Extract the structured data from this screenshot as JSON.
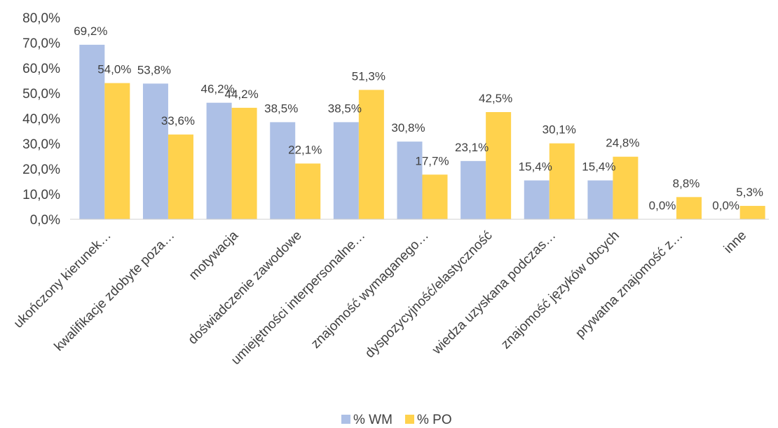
{
  "chart_data": {
    "type": "bar",
    "categories": [
      "ukończony kierunek…",
      "kwalifikacje zdobyte poza…",
      "motywacja",
      "doświadczenie zawodowe",
      "umiejętności interpersonalne…",
      "znajomość wymaganego…",
      "dyspozycyjność/elastyczność",
      "wiedza uzyskana podczas…",
      "znajomość języków obcych",
      "prywatna znajomość z…",
      "inne"
    ],
    "series": [
      {
        "name": "% WM",
        "color": "#adc0e6",
        "values": [
          69.2,
          53.8,
          46.2,
          38.5,
          38.5,
          30.8,
          23.1,
          15.4,
          15.4,
          0.0,
          0.0
        ],
        "labels": [
          "69,2%",
          "53,8%",
          "46,2%",
          "38,5%",
          "38,5%",
          "30,8%",
          "23,1%",
          "15,4%",
          "15,4%",
          "0,0%",
          "0,0%"
        ]
      },
      {
        "name": "% PO",
        "color": "#ffd24d",
        "values": [
          54.0,
          33.6,
          44.2,
          22.1,
          51.3,
          17.7,
          42.5,
          30.1,
          24.8,
          8.8,
          5.3
        ],
        "labels": [
          "54,0%",
          "33,6%",
          "44,2%",
          "22,1%",
          "51,3%",
          "17,7%",
          "42,5%",
          "30,1%",
          "24,8%",
          "8,8%",
          "5,3%"
        ]
      }
    ],
    "yticks": [
      "0,0%",
      "10,0%",
      "20,0%",
      "30,0%",
      "40,0%",
      "50,0%",
      "60,0%",
      "70,0%",
      "80,0%"
    ],
    "ylim": [
      0,
      80
    ],
    "grid": false,
    "legend_position": "bottom"
  }
}
